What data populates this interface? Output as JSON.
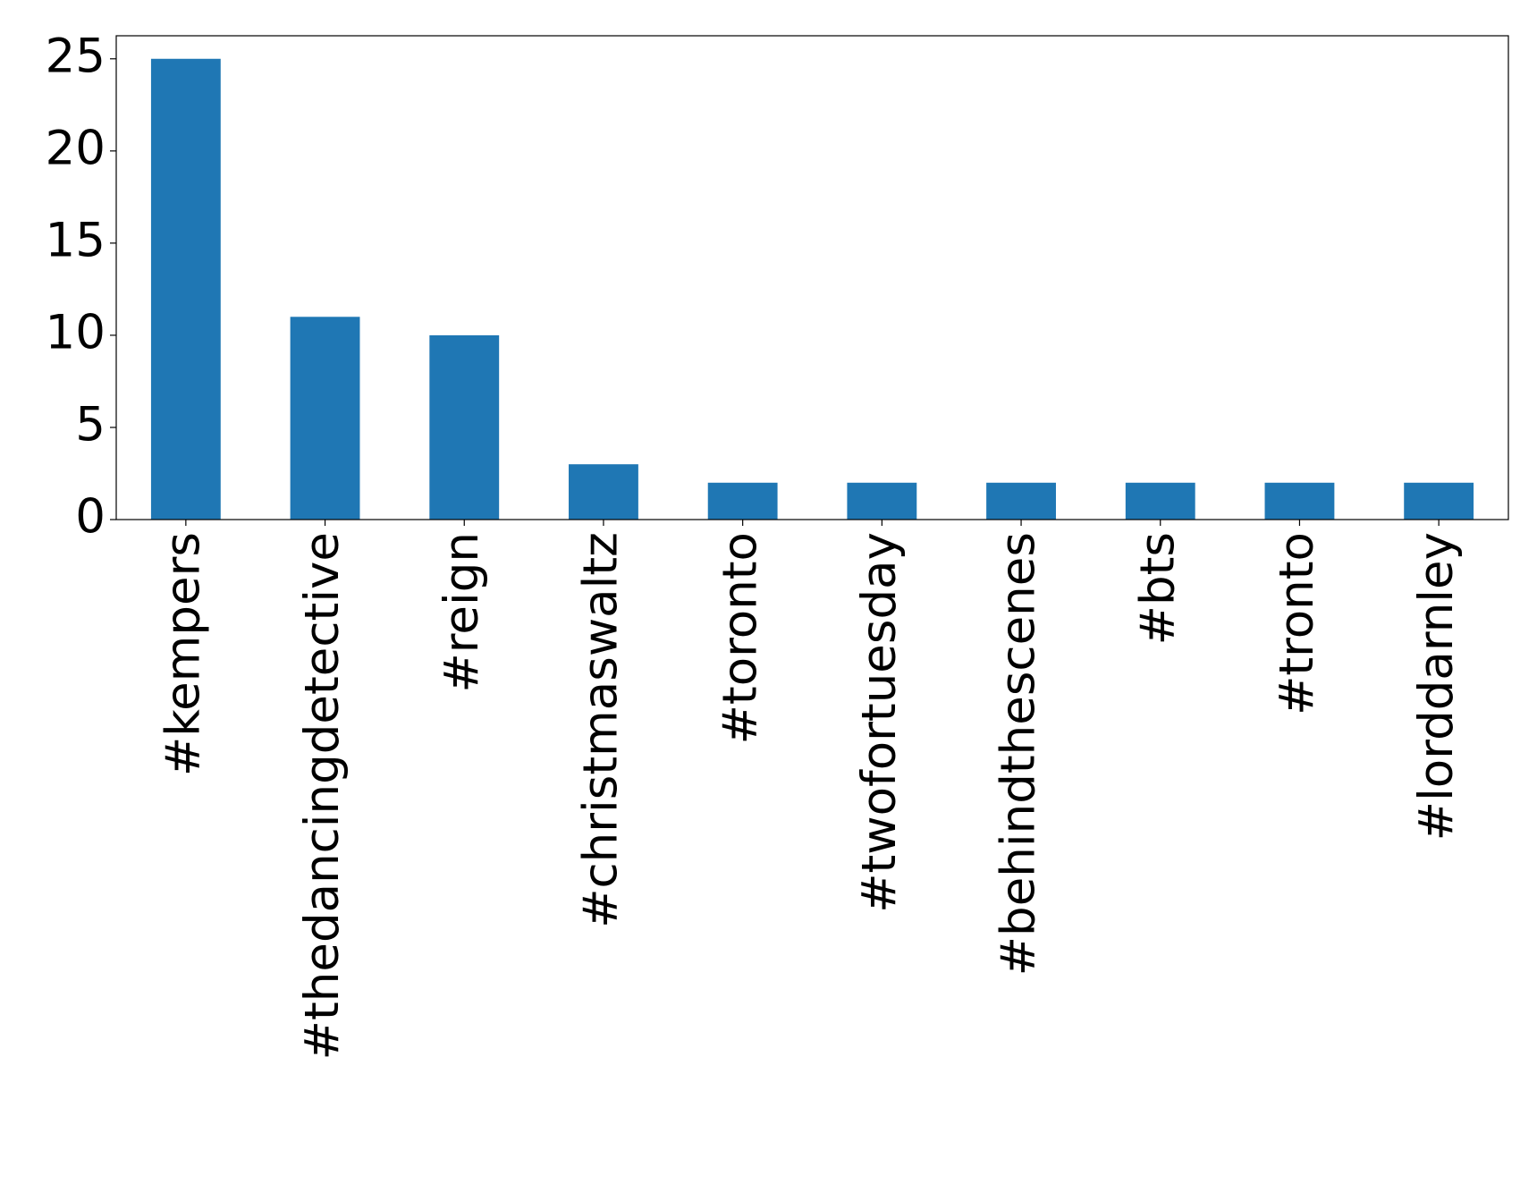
{
  "chart_data": {
    "type": "bar",
    "categories": [
      "#kempers",
      "#thedancingdetective",
      "#reign",
      "#christmaswaltz",
      "#toronto",
      "#twofortuesday",
      "#behindthescenes",
      "#bts",
      "#tronto",
      "#lorddarnley"
    ],
    "values": [
      25,
      11,
      10,
      3,
      2,
      2,
      2,
      2,
      2,
      2
    ],
    "color": "#1f77b4",
    "ylim": [
      0,
      26.25
    ],
    "yticks": [
      0,
      5,
      10,
      15,
      20,
      25
    ],
    "grid": false
  }
}
